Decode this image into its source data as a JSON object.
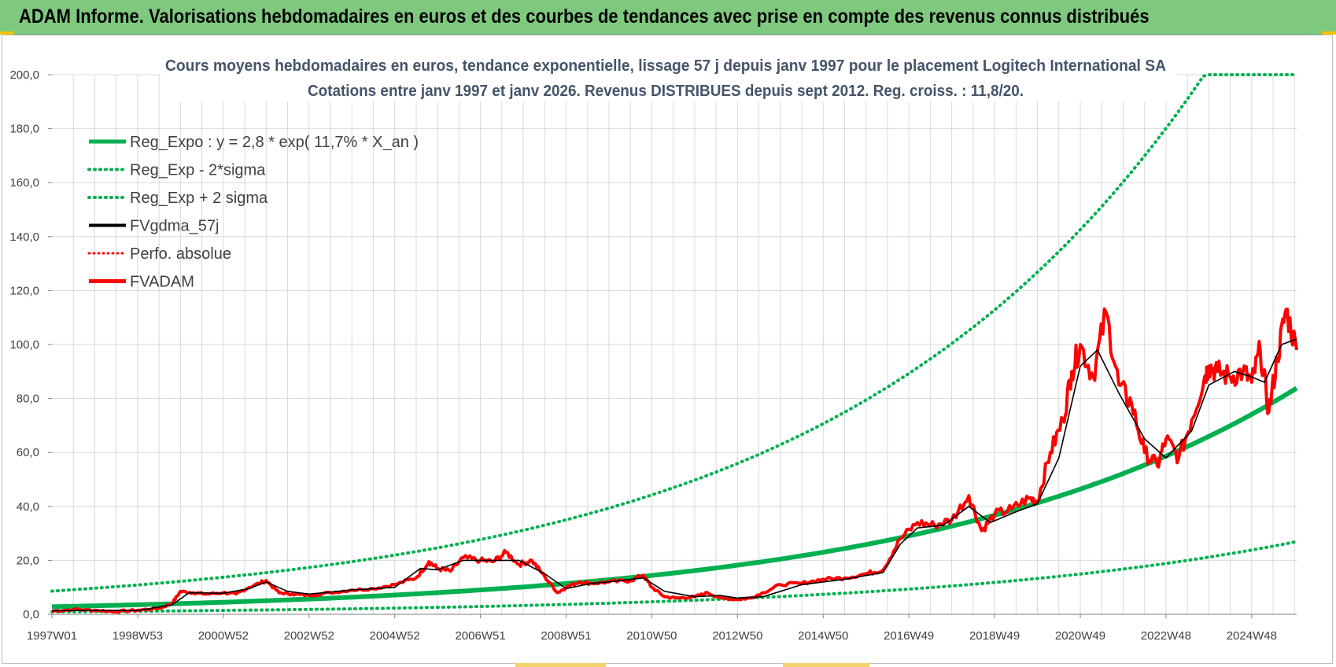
{
  "banner": {
    "title": "ADAM Informe. Valorisations hebdomadaires en euros et des courbes de tendances avec prise en compte des revenus connus distribués"
  },
  "colors": {
    "banner_bg": "#7fc97f",
    "reg_expo": "#00b050",
    "sigma_bands": "#00b050",
    "fvgdma": "#000000",
    "perfo": "#ff0000",
    "fvadam": "#ff0000",
    "title_text": "#44546a",
    "gridline": "#d9d9d9"
  },
  "chart_data": {
    "type": "line",
    "title_line1": "Cours moyens hebdomadaires en euros, tendance exponentielle, lissage 57 j depuis janv 1997  pour le placement Logitech International SA",
    "title_line2": "Cotations entre janv 1997 et janv 2026. Revenus DISTRIBUES depuis sept 2012. Reg. croiss. : 11,8/20.",
    "x_range": [
      1997.0,
      2026.05
    ],
    "ylim": [
      0,
      200
    ],
    "y_ticks": [
      "0,0",
      "20,0",
      "40,0",
      "60,0",
      "80,0",
      "100,0",
      "120,0",
      "140,0",
      "160,0",
      "180,0",
      "200,0"
    ],
    "y_tick_values": [
      0,
      20,
      40,
      60,
      80,
      100,
      120,
      140,
      160,
      180,
      200
    ],
    "x_ticks": [
      "1997W01",
      "1998W53",
      "2000W52",
      "2002W52",
      "2004W52",
      "2006W51",
      "2008W51",
      "2010W50",
      "2012W50",
      "2014W50",
      "2016W49",
      "2018W49",
      "2020W49",
      "2022W48",
      "2024W48"
    ],
    "x_tick_positions": [
      1997.0,
      1999.0,
      2001.0,
      2003.0,
      2005.0,
      2007.0,
      2009.0,
      2011.0,
      2013.0,
      2015.0,
      2017.0,
      2019.0,
      2021.0,
      2023.0,
      2025.0
    ],
    "legend": [
      {
        "label": "Reg_Expo : y = 2,8 * exp( 11,7% *  X_an )",
        "style": "solid-thick-green"
      },
      {
        "label": "Reg_Exp - 2*sigma",
        "style": "dotted-green"
      },
      {
        "label": "Reg_Exp + 2 sigma",
        "style": "dotted-green"
      },
      {
        "label": "FVgdma_57j",
        "style": "solid-black"
      },
      {
        "label": "Perfo. absolue",
        "style": "dotted-red"
      },
      {
        "label": "FVADAM",
        "style": "solid-thick-red"
      }
    ],
    "series": [
      {
        "name": "Reg_Expo",
        "formula": "2,8 * exp(11,7% * X_an)",
        "x": [
          1997.0,
          2001.0,
          2005.0,
          2009.0,
          2013.0,
          2017.0,
          2021.0,
          2024.0,
          2026.05
        ],
        "values": [
          2.8,
          4.5,
          7.1,
          11.3,
          18.0,
          28.6,
          45.5,
          64.5,
          83.6
        ]
      },
      {
        "name": "Reg_Exp - 2*sigma",
        "x": [
          1997.0,
          2001.0,
          2005.0,
          2009.0,
          2013.0,
          2017.0,
          2021.0,
          2024.0,
          2026.05
        ],
        "values": [
          0.9,
          1.5,
          2.3,
          3.7,
          5.9,
          9.3,
          14.8,
          21.0,
          27.2
        ]
      },
      {
        "name": "Reg_Exp + 2 sigma",
        "x": [
          1997.0,
          2001.0,
          2005.0,
          2009.0,
          2013.0,
          2017.0,
          2019.0,
          2021.0,
          2022.0,
          2023.0,
          2024.0,
          2024.5,
          2026.05
        ],
        "values": [
          8.6,
          13.7,
          21.8,
          34.8,
          55.3,
          88.0,
          111.0,
          140.0,
          157.0,
          177.0,
          198.0,
          200.0,
          200.0
        ]
      },
      {
        "name": "FVADAM",
        "x": [
          1997.0,
          1997.5,
          1998.0,
          1998.5,
          1999.0,
          1999.5,
          1999.8,
          2000.0,
          2000.3,
          2000.6,
          2001.0,
          2001.3,
          2001.6,
          2002.0,
          2002.3,
          2002.6,
          2003.0,
          2003.5,
          2004.0,
          2004.5,
          2005.0,
          2005.5,
          2005.8,
          2006.0,
          2006.3,
          2006.6,
          2007.0,
          2007.3,
          2007.6,
          2007.9,
          2008.2,
          2008.5,
          2008.8,
          2009.0,
          2009.3,
          2009.6,
          2010.0,
          2010.5,
          2010.8,
          2011.0,
          2011.3,
          2011.6,
          2012.0,
          2012.3,
          2012.6,
          2013.0,
          2013.3,
          2013.6,
          2014.0,
          2014.5,
          2015.0,
          2015.5,
          2016.0,
          2016.4,
          2016.8,
          2017.2,
          2017.6,
          2018.0,
          2018.4,
          2018.7,
          2019.0,
          2019.4,
          2019.8,
          2020.0,
          2020.3,
          2020.6,
          2020.8,
          2021.0,
          2021.3,
          2021.6,
          2021.9,
          2022.2,
          2022.5,
          2022.8,
          2023.0,
          2023.3,
          2023.6,
          2023.9,
          2024.0,
          2024.2,
          2024.5,
          2024.8,
          2025.0,
          2025.2,
          2025.4,
          2025.6,
          2025.8,
          2026.05
        ],
        "values": [
          1.2,
          1.8,
          1.5,
          1.0,
          1.5,
          2.2,
          4.0,
          8.5,
          8.0,
          7.5,
          8.0,
          7.5,
          10.0,
          12.5,
          8.0,
          7.5,
          7.0,
          8.0,
          9.0,
          9.5,
          11.0,
          13.5,
          19.5,
          17.0,
          16.0,
          21.0,
          20.0,
          19.5,
          23.0,
          18.5,
          20.0,
          14.0,
          8.0,
          10.0,
          12.0,
          11.5,
          12.0,
          12.5,
          14.5,
          10.0,
          6.5,
          6.0,
          6.5,
          8.0,
          6.0,
          5.5,
          6.0,
          8.0,
          11.0,
          11.5,
          13.0,
          13.5,
          15.0,
          16.5,
          28.0,
          34.0,
          33.0,
          35.0,
          44.0,
          31.0,
          37.0,
          39.0,
          43.0,
          42.0,
          60.0,
          72.0,
          90.0,
          100.0,
          88.0,
          112.0,
          85.0,
          78.0,
          60.0,
          55.0,
          65.0,
          58.0,
          72.0,
          88.0,
          92.0,
          90.0,
          88.0,
          90.0,
          86.0,
          98.0,
          75.0,
          95.0,
          113.0,
          98.0
        ]
      },
      {
        "name": "FVgdma_57j",
        "x": [
          1997.0,
          1998.0,
          1999.0,
          1999.8,
          2000.2,
          2001.0,
          2001.6,
          2002.0,
          2002.5,
          2003.0,
          2004.0,
          2005.0,
          2005.6,
          2006.0,
          2006.6,
          2007.3,
          2007.9,
          2008.5,
          2009.0,
          2009.6,
          2010.0,
          2010.8,
          2011.3,
          2012.0,
          2012.6,
          2013.0,
          2013.6,
          2014.5,
          2015.5,
          2016.4,
          2016.8,
          2017.2,
          2017.8,
          2018.4,
          2018.9,
          2019.5,
          2020.0,
          2020.5,
          2021.0,
          2021.4,
          2021.9,
          2022.5,
          2023.0,
          2023.6,
          2024.0,
          2024.6,
          2025.0,
          2025.3,
          2025.7,
          2026.05
        ],
        "values": [
          1.3,
          1.5,
          1.4,
          3.5,
          8.0,
          7.8,
          9.5,
          12.0,
          8.5,
          7.5,
          9.0,
          10.0,
          17.0,
          16.5,
          20.0,
          20.0,
          20.0,
          15.0,
          9.5,
          11.5,
          12.0,
          13.5,
          8.5,
          6.5,
          7.0,
          6.0,
          6.5,
          11.0,
          13.0,
          15.5,
          26.0,
          32.0,
          33.0,
          40.0,
          34.0,
          38.0,
          41.0,
          58.0,
          92.0,
          98.0,
          82.0,
          65.0,
          58.0,
          68.0,
          85.0,
          90.0,
          88.0,
          86.0,
          100.0,
          102.0
        ]
      }
    ]
  }
}
